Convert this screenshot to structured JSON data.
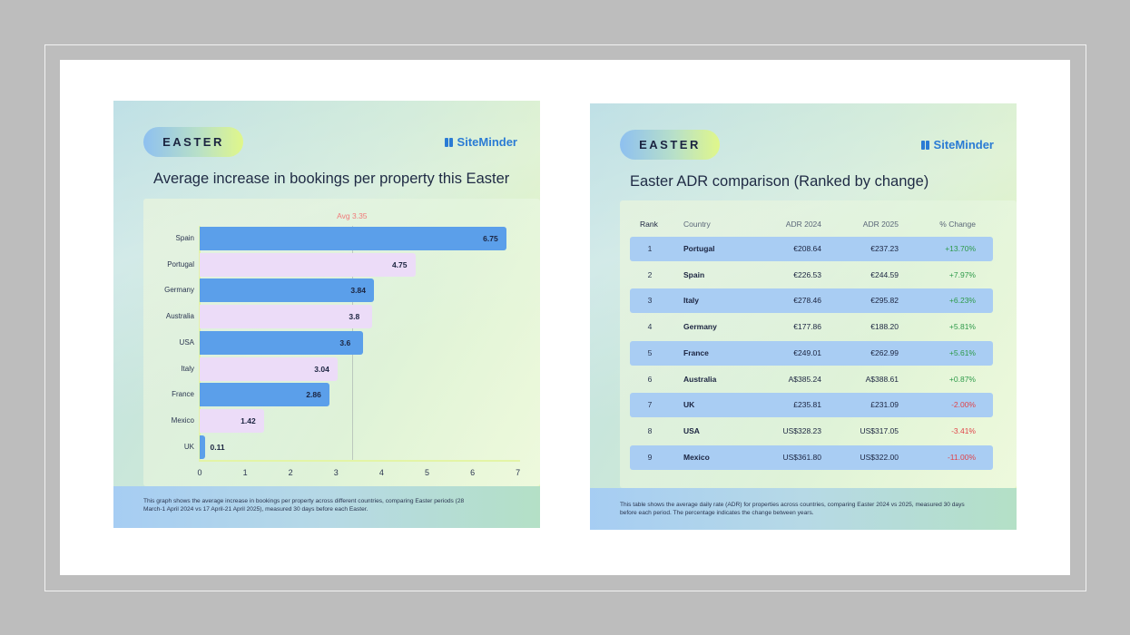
{
  "colors": {
    "bar_blue": "#5b9fea",
    "bar_pink": "#ecdcf8",
    "avg_label": "#f07a7a",
    "brand": "#2a7bd4",
    "positive": "#2e9a4a",
    "negative": "#e0444a",
    "row_shade": "#a9cdf3"
  },
  "left_card": {
    "pill": "EASTER",
    "brand": "SiteMinder",
    "title": "Average increase in bookings per property this Easter",
    "avg_label": "Avg 3.35",
    "footnote": "This graph shows the average increase in bookings per property across different countries, comparing Easter periods (28 March-1 April 2024 vs 17 April-21 April 2025), measured 30 days before each Easter."
  },
  "right_card": {
    "pill": "EASTER",
    "brand": "SiteMinder",
    "title": "Easter ADR comparison (Ranked by change)",
    "footnote": "This table shows the average daily rate (ADR) for properties across countries, comparing Easter 2024 vs 2025, measured 30 days before each period. The percentage indicates the change between years.",
    "headers": [
      "Rank",
      "Country",
      "ADR 2024",
      "ADR 2025",
      "% Change"
    ],
    "rows": [
      {
        "rank": "1",
        "country": "Portugal",
        "adr2024": "€208.64",
        "adr2025": "€237.23",
        "change": "+13.70%"
      },
      {
        "rank": "2",
        "country": "Spain",
        "adr2024": "€226.53",
        "adr2025": "€244.59",
        "change": "+7.97%"
      },
      {
        "rank": "3",
        "country": "Italy",
        "adr2024": "€278.46",
        "adr2025": "€295.82",
        "change": "+6.23%"
      },
      {
        "rank": "4",
        "country": "Germany",
        "adr2024": "€177.86",
        "adr2025": "€188.20",
        "change": "+5.81%"
      },
      {
        "rank": "5",
        "country": "France",
        "adr2024": "€249.01",
        "adr2025": "€262.99",
        "change": "+5.61%"
      },
      {
        "rank": "6",
        "country": "Australia",
        "adr2024": "A$385.24",
        "adr2025": "A$388.61",
        "change": "+0.87%"
      },
      {
        "rank": "7",
        "country": "UK",
        "adr2024": "£235.81",
        "adr2025": "£231.09",
        "change": "-2.00%"
      },
      {
        "rank": "8",
        "country": "USA",
        "adr2024": "US$328.23",
        "adr2025": "US$317.05",
        "change": "-3.41%"
      },
      {
        "rank": "9",
        "country": "Mexico",
        "adr2024": "US$361.80",
        "adr2025": "US$322.00",
        "change": "-11.00%"
      }
    ]
  },
  "chart_data": [
    {
      "type": "bar",
      "orientation": "horizontal",
      "title": "Average increase in bookings per property this Easter",
      "categories": [
        "Spain",
        "Portugal",
        "Germany",
        "Australia",
        "USA",
        "Italy",
        "France",
        "Mexico",
        "UK"
      ],
      "values": [
        6.75,
        4.75,
        3.84,
        3.8,
        3.6,
        3.04,
        2.86,
        1.42,
        0.11
      ],
      "value_labels": [
        "6.75",
        "4.75",
        "3.84",
        "3.8",
        "3.6",
        "3.04",
        "2.86",
        "1.42",
        "0.11"
      ],
      "xlabel": "",
      "ylabel": "",
      "xlim": [
        0,
        7
      ],
      "x_ticks": [
        "0",
        "1",
        "2",
        "3",
        "4",
        "5",
        "6",
        "7"
      ],
      "annotations": [
        {
          "type": "vline",
          "x": 3.35,
          "label": "Avg 3.35"
        }
      ],
      "grid": false,
      "legend": null
    },
    {
      "type": "table",
      "title": "Easter ADR comparison (Ranked by change)",
      "columns": [
        "Rank",
        "Country",
        "ADR 2024",
        "ADR 2025",
        "% Change"
      ],
      "rows": [
        [
          1,
          "Portugal",
          "€208.64",
          "€237.23",
          "+13.70%"
        ],
        [
          2,
          "Spain",
          "€226.53",
          "€244.59",
          "+7.97%"
        ],
        [
          3,
          "Italy",
          "€278.46",
          "€295.82",
          "+6.23%"
        ],
        [
          4,
          "Germany",
          "€177.86",
          "€188.20",
          "+5.81%"
        ],
        [
          5,
          "France",
          "€249.01",
          "€262.99",
          "+5.61%"
        ],
        [
          6,
          "Australia",
          "A$385.24",
          "A$388.61",
          "+0.87%"
        ],
        [
          7,
          "UK",
          "£235.81",
          "£231.09",
          "-2.00%"
        ],
        [
          8,
          "USA",
          "US$328.23",
          "US$317.05",
          "-3.41%"
        ],
        [
          9,
          "Mexico",
          "US$361.80",
          "US$322.00",
          "-11.00%"
        ]
      ]
    }
  ]
}
